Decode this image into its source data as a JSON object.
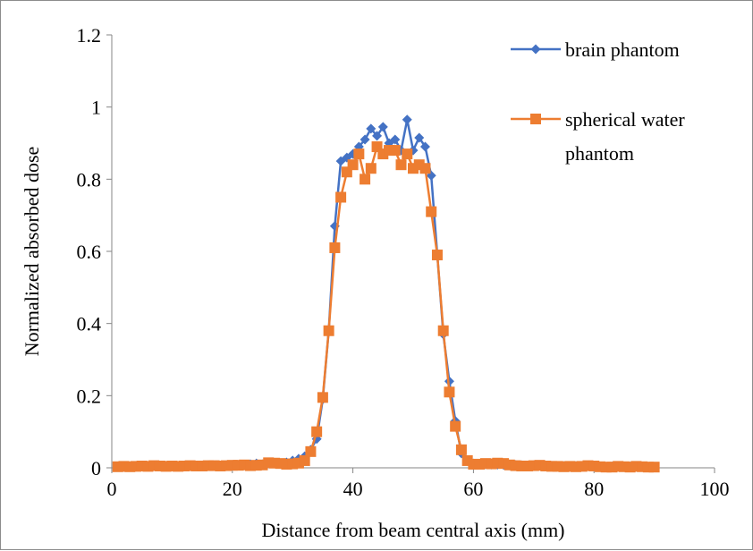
{
  "chart_data": {
    "type": "line",
    "title": "",
    "xlabel": "Distance from beam central axis (mm)",
    "ylabel": "Normalized absorbed dose",
    "xlim": [
      0,
      100
    ],
    "ylim": [
      0,
      1.2
    ],
    "x_ticks": [
      "0",
      "20",
      "40",
      "60",
      "80",
      "100"
    ],
    "y_ticks": [
      "0",
      "0.2",
      "0.4",
      "0.6",
      "0.8",
      "1",
      "1.2"
    ],
    "grid": false,
    "legend_position": "top-right",
    "series": [
      {
        "name": "brain phantom",
        "color": "#4472C4",
        "marker": "diamond",
        "points": [
          [
            1,
            0.004
          ],
          [
            2,
            0.003
          ],
          [
            3,
            0.004
          ],
          [
            4,
            0.005
          ],
          [
            5,
            0.004
          ],
          [
            6,
            0.005
          ],
          [
            7,
            0.006
          ],
          [
            8,
            0.005
          ],
          [
            9,
            0.004
          ],
          [
            10,
            0.005
          ],
          [
            11,
            0.004
          ],
          [
            12,
            0.006
          ],
          [
            13,
            0.005
          ],
          [
            14,
            0.005
          ],
          [
            15,
            0.006
          ],
          [
            16,
            0.007
          ],
          [
            17,
            0.006
          ],
          [
            18,
            0.006
          ],
          [
            19,
            0.007
          ],
          [
            20,
            0.008
          ],
          [
            21,
            0.007
          ],
          [
            22,
            0.008
          ],
          [
            23,
            0.01
          ],
          [
            24,
            0.012
          ],
          [
            25,
            0.01
          ],
          [
            26,
            0.012
          ],
          [
            27,
            0.013
          ],
          [
            28,
            0.012
          ],
          [
            29,
            0.015
          ],
          [
            30,
            0.02
          ],
          [
            31,
            0.025
          ],
          [
            32,
            0.032
          ],
          [
            33,
            0.05
          ],
          [
            34,
            0.08
          ],
          [
            35,
            0.19
          ],
          [
            36,
            0.38
          ],
          [
            37,
            0.67
          ],
          [
            38,
            0.85
          ],
          [
            39,
            0.86
          ],
          [
            40,
            0.87
          ],
          [
            41,
            0.89
          ],
          [
            42,
            0.91
          ],
          [
            43,
            0.94
          ],
          [
            44,
            0.92
          ],
          [
            45,
            0.945
          ],
          [
            46,
            0.9
          ],
          [
            47,
            0.91
          ],
          [
            48,
            0.88
          ],
          [
            49,
            0.965
          ],
          [
            50,
            0.88
          ],
          [
            51,
            0.915
          ],
          [
            52,
            0.89
          ],
          [
            53,
            0.81
          ],
          [
            54,
            0.59
          ],
          [
            55,
            0.37
          ],
          [
            56,
            0.24
          ],
          [
            57,
            0.13
          ],
          [
            58,
            0.04
          ],
          [
            59,
            0.02
          ],
          [
            60,
            0.012
          ],
          [
            61,
            0.01
          ],
          [
            62,
            0.01
          ],
          [
            63,
            0.009
          ],
          [
            64,
            0.009
          ],
          [
            65,
            0.008
          ],
          [
            66,
            0.007
          ],
          [
            67,
            0.008
          ],
          [
            68,
            0.007
          ],
          [
            69,
            0.006
          ],
          [
            70,
            0.007
          ],
          [
            71,
            0.006
          ],
          [
            72,
            0.005
          ],
          [
            73,
            0.006
          ],
          [
            74,
            0.005
          ],
          [
            75,
            0.005
          ],
          [
            76,
            0.004
          ],
          [
            77,
            0.005
          ],
          [
            78,
            0.004
          ],
          [
            79,
            0.005
          ],
          [
            80,
            0.004
          ],
          [
            81,
            0.004
          ],
          [
            82,
            0.003
          ],
          [
            83,
            0.004
          ],
          [
            84,
            0.004
          ],
          [
            85,
            0.003
          ],
          [
            86,
            0.004
          ],
          [
            87,
            0.003
          ],
          [
            88,
            0.003
          ],
          [
            89,
            0.003
          ],
          [
            90,
            0.003
          ]
        ]
      },
      {
        "name": "spherical water phantom",
        "color": "#ED7D31",
        "marker": "square",
        "points": [
          [
            1,
            0.003
          ],
          [
            2,
            0.004
          ],
          [
            3,
            0.003
          ],
          [
            4,
            0.004
          ],
          [
            5,
            0.005
          ],
          [
            6,
            0.004
          ],
          [
            7,
            0.006
          ],
          [
            8,
            0.005
          ],
          [
            9,
            0.004
          ],
          [
            10,
            0.005
          ],
          [
            11,
            0.004
          ],
          [
            12,
            0.005
          ],
          [
            13,
            0.006
          ],
          [
            14,
            0.005
          ],
          [
            15,
            0.005
          ],
          [
            16,
            0.006
          ],
          [
            17,
            0.006
          ],
          [
            18,
            0.005
          ],
          [
            19,
            0.006
          ],
          [
            20,
            0.007
          ],
          [
            21,
            0.007
          ],
          [
            22,
            0.008
          ],
          [
            23,
            0.006
          ],
          [
            24,
            0.007
          ],
          [
            25,
            0.008
          ],
          [
            26,
            0.014
          ],
          [
            27,
            0.013
          ],
          [
            28,
            0.012
          ],
          [
            29,
            0.01
          ],
          [
            30,
            0.011
          ],
          [
            31,
            0.013
          ],
          [
            32,
            0.02
          ],
          [
            33,
            0.045
          ],
          [
            34,
            0.1
          ],
          [
            35,
            0.195
          ],
          [
            36,
            0.38
          ],
          [
            37,
            0.61
          ],
          [
            38,
            0.75
          ],
          [
            39,
            0.82
          ],
          [
            40,
            0.84
          ],
          [
            41,
            0.87
          ],
          [
            42,
            0.8
          ],
          [
            43,
            0.83
          ],
          [
            44,
            0.89
          ],
          [
            45,
            0.87
          ],
          [
            46,
            0.88
          ],
          [
            47,
            0.88
          ],
          [
            48,
            0.84
          ],
          [
            49,
            0.87
          ],
          [
            50,
            0.83
          ],
          [
            51,
            0.84
          ],
          [
            52,
            0.83
          ],
          [
            53,
            0.71
          ],
          [
            54,
            0.59
          ],
          [
            55,
            0.38
          ],
          [
            56,
            0.21
          ],
          [
            57,
            0.115
          ],
          [
            58,
            0.05
          ],
          [
            59,
            0.02
          ],
          [
            60,
            0.01
          ],
          [
            61,
            0.01
          ],
          [
            62,
            0.012
          ],
          [
            63,
            0.011
          ],
          [
            64,
            0.013
          ],
          [
            65,
            0.012
          ],
          [
            66,
            0.008
          ],
          [
            67,
            0.006
          ],
          [
            68,
            0.005
          ],
          [
            69,
            0.005
          ],
          [
            70,
            0.006
          ],
          [
            71,
            0.007
          ],
          [
            72,
            0.005
          ],
          [
            73,
            0.004
          ],
          [
            74,
            0.004
          ],
          [
            75,
            0.003
          ],
          [
            76,
            0.004
          ],
          [
            77,
            0.003
          ],
          [
            78,
            0.004
          ],
          [
            79,
            0.006
          ],
          [
            80,
            0.005
          ],
          [
            81,
            0.003
          ],
          [
            82,
            0.002
          ],
          [
            83,
            0.002
          ],
          [
            84,
            0.004
          ],
          [
            85,
            0.003
          ],
          [
            86,
            0.002
          ],
          [
            87,
            0.004
          ],
          [
            88,
            0.003
          ],
          [
            89,
            0.002
          ],
          [
            90,
            0.002
          ]
        ]
      }
    ]
  },
  "legend": {
    "items": [
      {
        "lines": [
          "brain phantom"
        ]
      },
      {
        "lines": [
          "spherical water",
          "phantom"
        ]
      }
    ]
  }
}
